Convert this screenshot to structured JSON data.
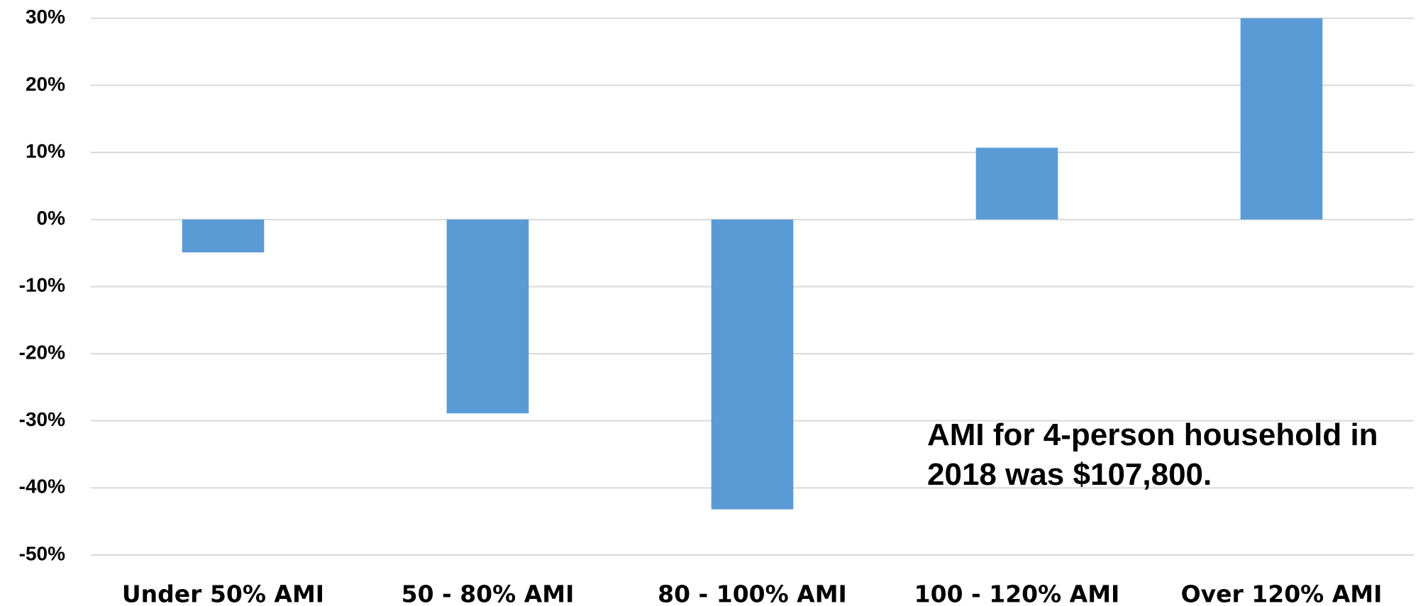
{
  "chart_data": {
    "type": "bar",
    "categories": [
      "Under 50% AMI",
      "50 - 80% AMI",
      "80 - 100% AMI",
      "100 - 120% AMI",
      "Over 120% AMI"
    ],
    "values": [
      -4.9,
      -28.9,
      -43.2,
      10.7,
      30
    ],
    "color": "#5b9bd5",
    "ylim": [
      -50,
      30
    ],
    "yticks": [
      {
        "value": -50,
        "label": "-50%"
      },
      {
        "value": -40,
        "label": "-40%"
      },
      {
        "value": -30,
        "label": "-30%"
      },
      {
        "value": -20,
        "label": "-20%"
      },
      {
        "value": -10,
        "label": "-10%"
      },
      {
        "value": 0,
        "label": "0%"
      },
      {
        "value": 10,
        "label": "10%"
      },
      {
        "value": 20,
        "label": "20%"
      },
      {
        "value": 30,
        "label": "30%"
      }
    ],
    "grid": true,
    "annotation": [
      "AMI for 4-person household in",
      "2018 was $107,800."
    ]
  }
}
